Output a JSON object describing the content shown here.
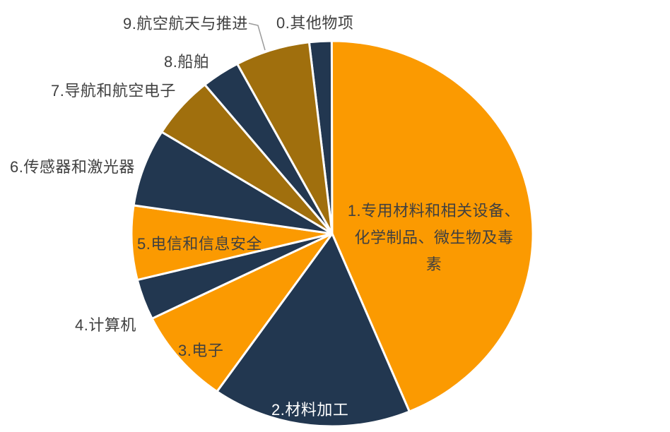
{
  "chart_data": {
    "type": "pie",
    "title": "",
    "legend": "none",
    "grid": "off",
    "start_angle_deg": -6.6,
    "categories": [
      "0.其他物项",
      "1.专用材料和相关设备、化学制品、微生物及毒素",
      "2.材料加工",
      "3.电子",
      "4.计算机",
      "5.电信和信息安全",
      "6.传感器和激光器",
      "7.导航和航空电子",
      "8.船舶",
      "9.航空航天与推进"
    ],
    "values_percent": [
      1.8,
      43.7,
      16.0,
      8.0,
      3.4,
      6.2,
      6.5,
      5.2,
      3.1,
      6.0
    ],
    "colors": [
      "#223750",
      "#FB9A01",
      "#223750",
      "#FB9A01",
      "#223750",
      "#FB9A01",
      "#223750",
      "#A06F0D",
      "#223750",
      "#A06F0D"
    ],
    "label_placement": {
      "inside": [
        "1.专用材料和相关设备、化学制品、微生物及毒素",
        "2.材料加工",
        "3.电子",
        "5.电信和信息安全"
      ],
      "outside": [
        "0.其他物项",
        "4.计算机",
        "6.传感器和激光器",
        "7.导航和航空电子",
        "8.船舶",
        "9.航空航天与推进"
      ]
    },
    "slice1_label_lines": [
      "1.专用材料和相关设备、",
      "化学制品、微生物及毒",
      "素"
    ]
  },
  "palette": {
    "orange": "#FB9A01",
    "navy": "#223750",
    "dark_gold": "#A06F0D",
    "slice_border": "#FFFFFF",
    "label_dark": "#404040",
    "label_light": "#FFFFFF",
    "leader_line": "#9B9B9B"
  }
}
